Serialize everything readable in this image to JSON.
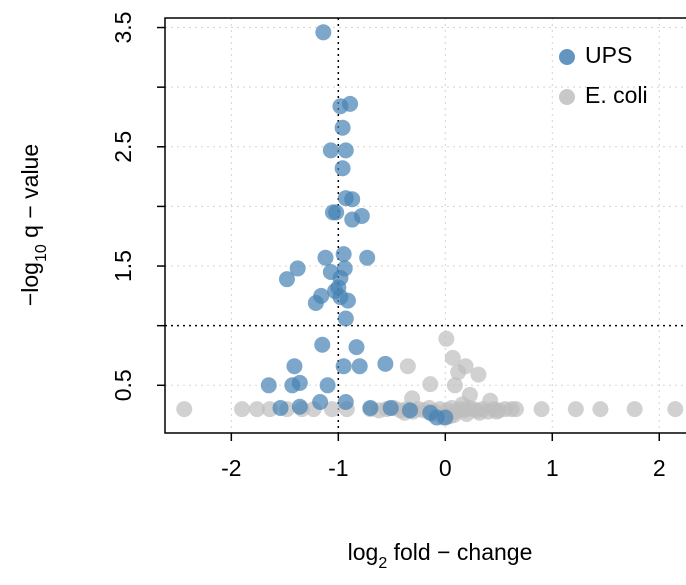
{
  "chart_data": {
    "type": "scatter",
    "x_label": {
      "base": "log",
      "sub": "2",
      "rest": " fold − change"
    },
    "y_label": {
      "base": "−log",
      "sub": "10",
      "rest": " q − value"
    },
    "xlim": [
      -2.62,
      2.25
    ],
    "ylim": [
      0.1,
      3.58
    ],
    "xticks": [
      -2,
      -1,
      0,
      1,
      2
    ],
    "yticks": [
      0.5,
      {
        "value": 1,
        "label": null
      },
      1.5,
      {
        "value": 2,
        "label": null
      },
      2.5,
      {
        "value": 3,
        "label": null
      },
      3.5
    ],
    "grid": true,
    "thresholds": {
      "x": -1,
      "y": 1
    },
    "legend": "top-right",
    "series": [
      {
        "name": "E. coli",
        "color": "#bebebe",
        "x": [
          -2.44,
          -1.9,
          -1.76,
          -1.64,
          -1.48,
          -1.34,
          -1.23,
          -1.06,
          -0.92,
          -0.7,
          -0.62,
          -0.55,
          -0.48,
          -0.42,
          -0.36,
          -0.3,
          -0.25,
          -0.2,
          -0.15,
          -0.1,
          -0.05,
          0.02,
          0.06,
          0.1,
          0.14,
          0.18,
          0.22,
          0.26,
          0.3,
          0.35,
          0.4,
          0.45,
          0.5,
          0.56,
          0.62,
          0.66,
          -0.38,
          -0.12,
          0.08,
          0.2,
          0.32,
          0.48,
          0.9,
          1.22,
          1.45,
          1.77,
          2.15,
          0.01,
          0.07,
          -0.35,
          0.12,
          0.19,
          0.31,
          -0.14,
          0.09,
          0.23,
          0.42,
          -0.31,
          0.04,
          -0.02,
          0.16
        ],
        "values": [
          0.3,
          0.3,
          0.3,
          0.3,
          0.3,
          0.3,
          0.3,
          0.3,
          0.3,
          0.3,
          0.29,
          0.3,
          0.31,
          0.29,
          0.3,
          0.28,
          0.3,
          0.29,
          0.31,
          0.28,
          0.3,
          0.29,
          0.31,
          0.28,
          0.3,
          0.29,
          0.31,
          0.3,
          0.29,
          0.3,
          0.28,
          0.3,
          0.29,
          0.3,
          0.3,
          0.3,
          0.27,
          0.26,
          0.25,
          0.26,
          0.27,
          0.28,
          0.3,
          0.3,
          0.3,
          0.3,
          0.3,
          0.89,
          0.73,
          0.66,
          0.61,
          0.66,
          0.59,
          0.51,
          0.5,
          0.42,
          0.37,
          0.39,
          0.24,
          0.23,
          0.34
        ]
      },
      {
        "name": "UPS",
        "color": "#4682b4",
        "x": [
          -1.14,
          -0.89,
          -0.98,
          -0.96,
          -1.07,
          -0.93,
          -0.96,
          -0.93,
          -0.87,
          -1.05,
          -1.02,
          -0.78,
          -0.87,
          -1.12,
          -0.95,
          -0.73,
          -1.38,
          -0.94,
          -1.48,
          -1.07,
          -0.98,
          -1.0,
          -1.03,
          -1.16,
          -1.21,
          -0.98,
          -0.91,
          -0.93,
          -1.15,
          -0.83,
          -1.41,
          -0.95,
          -0.8,
          -0.56,
          -1.65,
          -1.43,
          -1.36,
          -1.1,
          -1.54,
          -1.36,
          -1.17,
          -0.93,
          -0.7,
          -0.51,
          -0.33,
          -0.14,
          -0.08,
          0.0
        ],
        "values": [
          3.46,
          2.86,
          2.84,
          2.66,
          2.47,
          2.47,
          2.32,
          2.07,
          2.06,
          1.95,
          1.95,
          1.92,
          1.89,
          1.57,
          1.6,
          1.57,
          1.48,
          1.48,
          1.39,
          1.45,
          1.4,
          1.32,
          1.29,
          1.25,
          1.19,
          1.24,
          1.21,
          1.06,
          0.84,
          0.82,
          0.66,
          0.66,
          0.66,
          0.68,
          0.5,
          0.5,
          0.52,
          0.5,
          0.31,
          0.32,
          0.36,
          0.36,
          0.31,
          0.31,
          0.29,
          0.27,
          0.23,
          0.23
        ]
      }
    ]
  }
}
